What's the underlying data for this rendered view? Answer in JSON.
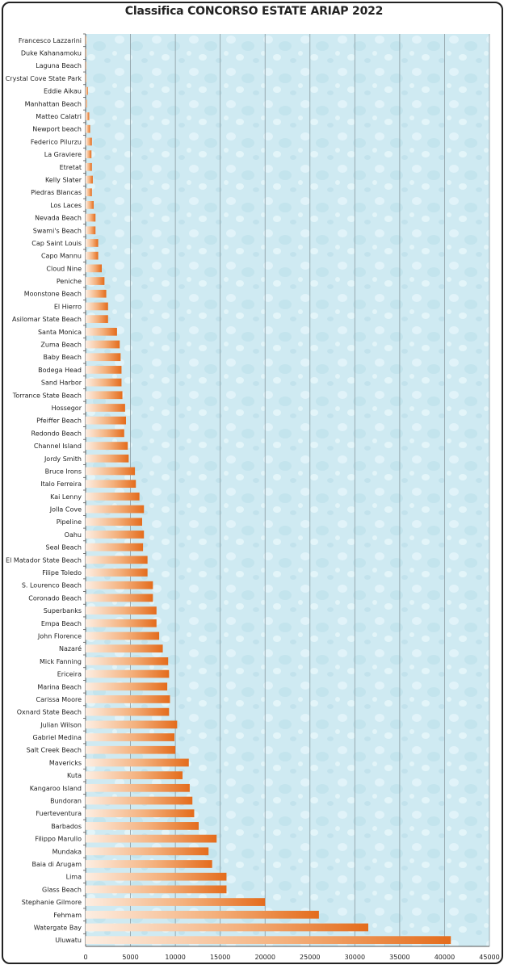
{
  "chart_data": {
    "type": "bar",
    "orientation": "horizontal",
    "title": "Classifica CONCORSO ESTATE ARIAP 2022",
    "xlim": [
      0,
      45000
    ],
    "x_ticks": [
      0,
      5000,
      10000,
      15000,
      20000,
      25000,
      30000,
      35000,
      40000,
      45000
    ],
    "grid": "vertical",
    "bar_color": "#e8762c",
    "plot_background": "#cfeaf2",
    "categories": [
      "Francesco Lazzarini",
      "Duke Kahanamoku",
      "Laguna Beach",
      "Crystal Cove State Park",
      "Eddie Aikau",
      "Manhattan Beach",
      "Matteo Calatri",
      "Newport beach",
      "Federico Pilurzu",
      "La Graviere",
      "Etretat",
      "Kelly Slater",
      "Piedras Blancas",
      "Los Laces",
      "Nevada Beach",
      "Swami's Beach",
      "Cap Saint Louis",
      "Capo Mannu",
      "Cloud Nine",
      "Peniche",
      "Moonstone Beach",
      "El Hierro",
      "Asilomar State Beach",
      "Santa Monica",
      "Zuma Beach",
      "Baby Beach",
      "Bodega Head",
      "Sand Harbor",
      "Torrance State Beach",
      "Hossegor",
      "Pfeiffer Beach",
      "Redondo Beach",
      "Channel Island",
      "Jordy Smith",
      "Bruce Irons",
      "Italo Ferreira",
      "Kai Lenny",
      "Jolla Cove",
      "Pipeline",
      "Oahu",
      "Seal Beach",
      "El Matador State Beach",
      "Filipe Toledo",
      "S. Lourenco Beach",
      "Coronado Beach",
      "Superbanks",
      "Empa Beach",
      "John Florence",
      "Nazaré",
      "Mick Fanning",
      "Ericeira",
      "Marina Beach",
      "Carissa Moore",
      "Oxnard State Beach",
      "Julian Wilson",
      "Gabriel Medina",
      "Salt Creek Beach",
      "Mavericks",
      "Kuta",
      "Kangaroo Island",
      "Bundoran",
      "Fuerteventura",
      "Barbados",
      "Filippo Marullo",
      "Mundaka",
      "Baia di Arugam",
      "Lima",
      "Glass Beach",
      "Stephanie Gilmore",
      "Fehmam",
      "Watergate Bay",
      "Uluwatu"
    ],
    "values": [
      80,
      60,
      60,
      40,
      250,
      150,
      400,
      500,
      700,
      650,
      700,
      800,
      700,
      900,
      1100,
      1100,
      1400,
      1400,
      1800,
      2100,
      2300,
      2500,
      2500,
      3500,
      3800,
      3900,
      4000,
      4000,
      4100,
      4400,
      4500,
      4300,
      4700,
      4800,
      5500,
      5600,
      6000,
      6500,
      6300,
      6500,
      6400,
      6900,
      6900,
      7500,
      7500,
      7900,
      7900,
      8200,
      8600,
      9200,
      9300,
      9100,
      9400,
      9300,
      10200,
      9900,
      10000,
      11500,
      10800,
      11600,
      11900,
      12100,
      12600,
      14600,
      13700,
      14100,
      15700,
      15700,
      20000,
      26000,
      31500,
      40700
    ]
  }
}
